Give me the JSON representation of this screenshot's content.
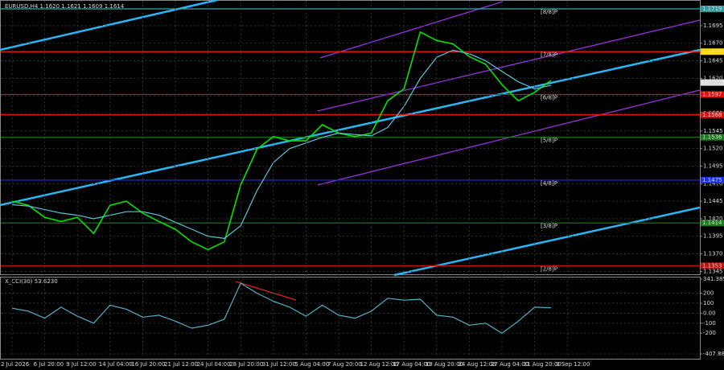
{
  "chart_data": [
    {
      "type": "line",
      "title": "EURUSD,H4  1.1620 1.1621 1.1609 1.1614",
      "ylim": [
        1.1342,
        1.1727
      ],
      "yticks": [
        1.1695,
        {
          "value": 1.167,
          "label": "1.1670"
        },
        1.1645,
        {
          "value": 1.162,
          "label": "1.1620"
        },
        1.1595,
        {
          "value": 1.157,
          "label": "1.1570"
        },
        1.1545,
        {
          "value": 1.152,
          "label": "1.1520"
        },
        1.1495,
        {
          "value": 1.147,
          "label": "1.1470"
        },
        1.1445,
        {
          "value": 1.142,
          "label": "1.1420"
        },
        1.1395,
        {
          "value": 1.137,
          "label": "1.1370"
        },
        1.1345
      ],
      "grid": true,
      "series": [
        {
          "color": "#00e600",
          "values": [
            1.1445,
            1.1439,
            1.1422,
            1.1416,
            1.1422,
            1.1399,
            1.1439,
            1.1445,
            1.1428,
            1.1416,
            1.1405,
            1.1387,
            1.1376,
            1.1387,
            1.1468,
            1.1519,
            1.1537,
            1.1531,
            1.1531,
            1.1554,
            1.1542,
            1.1537,
            1.1542,
            1.1588,
            1.1605,
            1.1686,
            1.1674,
            1.1669,
            1.1651,
            1.164,
            1.1611,
            1.1588,
            1.16,
            1.1617,
            null
          ]
        },
        {
          "color": "#5bc8dc",
          "values": [
            1.144,
            1.1438,
            1.1433,
            1.1428,
            1.1425,
            1.142,
            1.1425,
            1.143,
            1.143,
            1.1425,
            1.1415,
            1.1405,
            1.1395,
            1.1392,
            1.141,
            1.146,
            1.15,
            1.152,
            1.1528,
            1.1536,
            1.1542,
            1.154,
            1.1538,
            1.155,
            1.158,
            1.162,
            1.165,
            1.166,
            1.1655,
            1.1645,
            1.163,
            1.1615,
            1.1605,
            1.161,
            null
          ]
        }
      ],
      "levels": [
        {
          "value": 1.1719,
          "label": "[8/8]P",
          "color": "#3aa8a8",
          "box_color": "#2aa0a0"
        },
        {
          "value": 1.1658,
          "label": "[7/8]P",
          "color": "#ff1a1a",
          "box_color": "#ffd800"
        },
        {
          "value": 1.1597,
          "label": "[6/8]P",
          "color": "#e01010",
          "box_color": "#e01010"
        },
        {
          "value": 1.1568,
          "color": "#ff1a1a",
          "box_color": "#e01010"
        },
        {
          "value": 1.1536,
          "label": "[5/8]P",
          "color": "#1e7a1e",
          "box_color": "#1e7a1e"
        },
        {
          "value": 1.1475,
          "label": "[4/8]P",
          "color": "#2030e0",
          "box_color": "#2030e0"
        },
        {
          "value": 1.1414,
          "label": "[3/8]P",
          "color": "#1e7a1e",
          "box_color": "#1e7a1e"
        },
        {
          "value": 1.1353,
          "label": "[2/8]P",
          "color": "#c01010",
          "box_color": "#c01010"
        }
      ],
      "last": 1.1614
    },
    {
      "type": "line",
      "title": "X_CCI(30) 53.6230",
      "categories": [
        "2 Jul 2026",
        null,
        "6 Jul 20:00",
        null,
        "9 Jul 12:00",
        null,
        "14 Jul 04:00",
        null,
        "16 Jul 20:00",
        null,
        "21 Jul 12:00",
        null,
        "24 Jul 04:00",
        null,
        "28 Jul 20:00",
        null,
        "31 Jul 12:00",
        null,
        "5 Aug 04:00",
        null,
        "7 Aug 20:00",
        null,
        "12 Aug 12:00",
        null,
        "17 Aug 04:00",
        null,
        "19 Aug 20:00",
        null,
        "24 Aug 12:00",
        null,
        "27 Aug 04:00",
        null,
        "31 Aug 20:00",
        null,
        "3 Sep 12:00"
      ],
      "ylim": [
        -407.883,
        341.3899
      ],
      "yticks": [
        341.3899,
        200,
        100,
        {
          "value": 0,
          "label": "0.00"
        },
        -100,
        -200,
        -407.883
      ],
      "grid": true,
      "series": [
        {
          "color": "#4fb3c9",
          "values": [
            50,
            20,
            -50,
            60,
            -30,
            -100,
            80,
            40,
            -40,
            -20,
            -80,
            -150,
            -120,
            -60,
            300,
            200,
            120,
            60,
            -30,
            80,
            -20,
            -50,
            20,
            150,
            130,
            140,
            -20,
            -40,
            -120,
            -100,
            -200,
            -80,
            60,
            53.623,
            null
          ]
        }
      ]
    }
  ]
}
